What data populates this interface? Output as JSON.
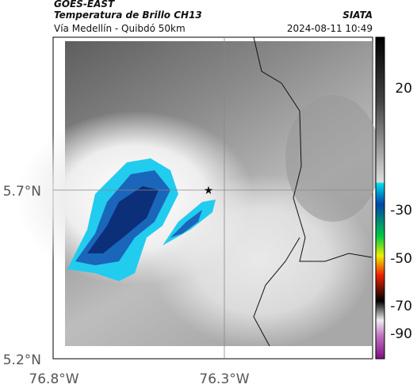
{
  "header": {
    "source": "GOES-EAST",
    "title": "Temperatura de Brillo CH13",
    "brand": "SIATA",
    "subtitle": "Vía Medellín - Quibdó 50km",
    "timestamp": "2024-08-11 10:49"
  },
  "axes": {
    "lat_labels": [
      "5.7°N",
      "5.2°N"
    ],
    "lon_labels": [
      "76.8°W",
      "76.3°W"
    ]
  },
  "colorbar": {
    "tick_labels": [
      20,
      -30,
      -50,
      -70,
      -90
    ]
  }
}
